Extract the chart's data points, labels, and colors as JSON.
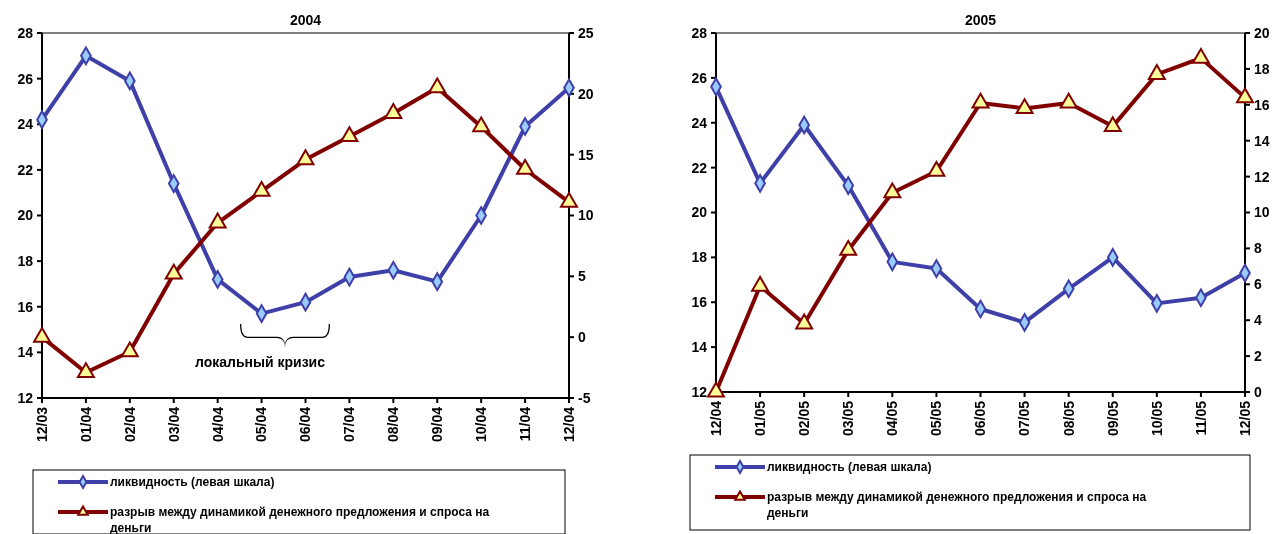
{
  "chart_data": [
    {
      "type": "line",
      "title": "2004",
      "categories": [
        "12/03",
        "01/04",
        "02/04",
        "03/04",
        "04/04",
        "05/04",
        "06/04",
        "07/04",
        "08/04",
        "09/04",
        "10/04",
        "11/04",
        "12/04"
      ],
      "series": [
        {
          "name": "ликвидность (левая шкала)",
          "color": "#3f3fa8",
          "marker": "diamond",
          "values": [
            24.2,
            27.0,
            25.9,
            21.4,
            17.2,
            15.7,
            16.2,
            17.3,
            17.6,
            17.1,
            20.0,
            23.9,
            25.6
          ]
        },
        {
          "name": "разрыв между динамикой денежного предложения и спроса на деньги",
          "color": "#800000",
          "marker": "triangle",
          "axis": "y2",
          "values": [
            0,
            -2.9,
            -1.2,
            5.2,
            9.4,
            12.0,
            14.6,
            16.5,
            18.4,
            20.5,
            17.3,
            13.8,
            11.1
          ]
        }
      ],
      "ylim": [
        12,
        28
      ],
      "yticks": [
        12,
        14,
        16,
        18,
        20,
        22,
        24,
        26,
        28
      ],
      "y2lim": [
        -5,
        25
      ],
      "y2ticks": [
        -5,
        0,
        5,
        10,
        15,
        20,
        25
      ],
      "annotations": [
        "локальный кризис"
      ],
      "legend": "bottom",
      "grid": false,
      "line_style": "solid"
    },
    {
      "type": "line",
      "title": "2005",
      "categories": [
        "12/04",
        "01/05",
        "02/05",
        "03/05",
        "04/05",
        "05/05",
        "06/05",
        "07/05",
        "08/05",
        "09/05",
        "10/05",
        "11/05",
        "12/05"
      ],
      "series": [
        {
          "name": "ликвидность (левая шкала)",
          "color": "#3f3fa8",
          "marker": "diamond",
          "values": [
            25.6,
            21.3,
            23.9,
            21.2,
            17.8,
            17.5,
            15.7,
            15.1,
            16.6,
            18.0,
            15.95,
            16.2,
            17.3
          ]
        },
        {
          "name": "разрыв между динамикой денежного предложения и спроса на деньги",
          "color": "#800000",
          "marker": "triangle",
          "axis": "y2",
          "values": [
            0,
            5.9,
            3.8,
            7.9,
            11.1,
            12.3,
            16.1,
            15.8,
            16.1,
            14.8,
            17.7,
            18.6,
            16.4
          ]
        }
      ],
      "ylim": [
        12,
        28
      ],
      "yticks": [
        12,
        14,
        16,
        18,
        20,
        22,
        24,
        26,
        28
      ],
      "y2lim": [
        0,
        20
      ],
      "y2ticks": [
        0,
        2,
        4,
        6,
        8,
        10,
        12,
        14,
        16,
        18,
        20
      ],
      "legend": "bottom",
      "grid": false,
      "line_style": "solid"
    }
  ]
}
